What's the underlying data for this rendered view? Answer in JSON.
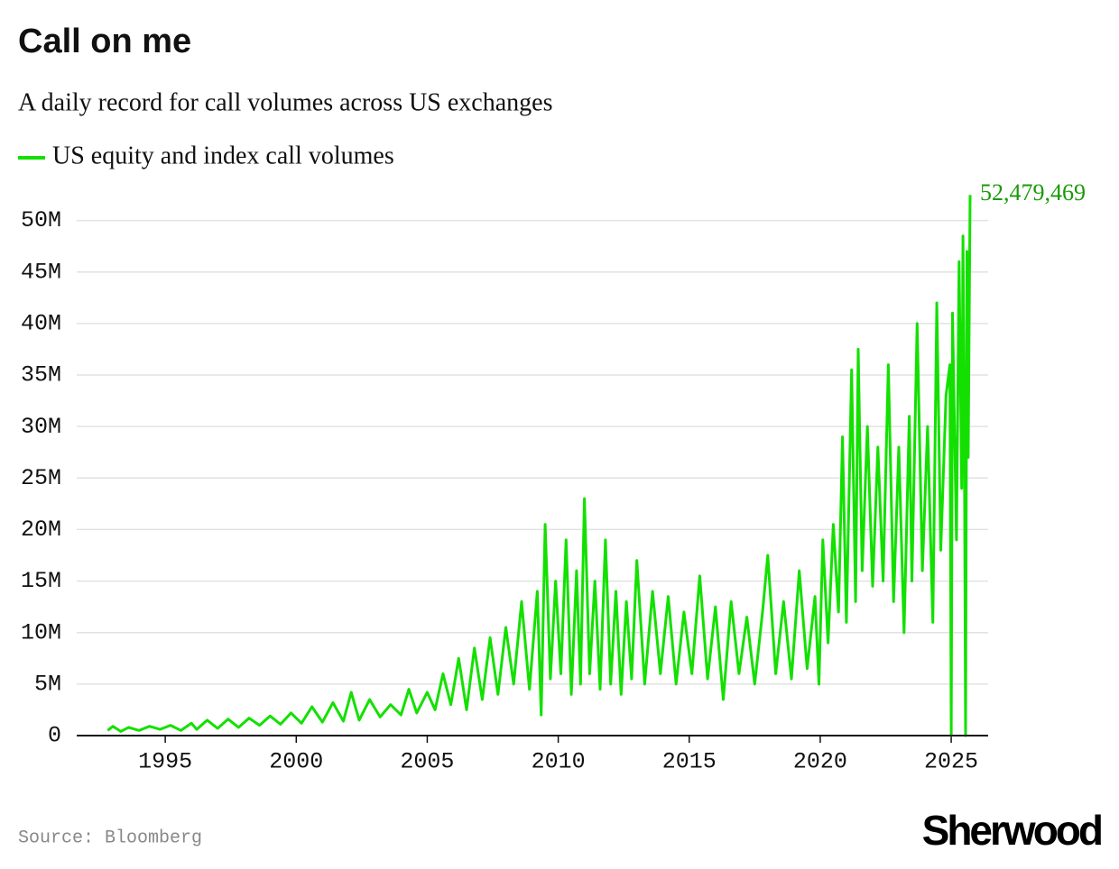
{
  "chart_data": {
    "type": "line",
    "title": "Call on me",
    "subtitle": "A daily record for call volumes across US exchanges",
    "source": "Source: Bloomberg",
    "brand": "Sherwood",
    "x": [
      1992.8,
      1993.0,
      1993.3,
      1993.6,
      1994.0,
      1994.4,
      1994.8,
      1995.2,
      1995.6,
      1996.0,
      1996.2,
      1996.6,
      1997.0,
      1997.4,
      1997.8,
      1998.2,
      1998.6,
      1999.0,
      1999.4,
      1999.8,
      2000.2,
      2000.6,
      2001.0,
      2001.4,
      2001.8,
      2002.1,
      2002.4,
      2002.8,
      2003.2,
      2003.6,
      2004.0,
      2004.3,
      2004.6,
      2005.0,
      2005.3,
      2005.6,
      2005.9,
      2006.2,
      2006.5,
      2006.8,
      2007.1,
      2007.4,
      2007.7,
      2008.0,
      2008.3,
      2008.6,
      2008.9,
      2009.2,
      2009.35,
      2009.5,
      2009.7,
      2009.9,
      2010.1,
      2010.3,
      2010.5,
      2010.7,
      2010.85,
      2011.0,
      2011.2,
      2011.4,
      2011.6,
      2011.8,
      2012.0,
      2012.2,
      2012.4,
      2012.6,
      2012.8,
      2013.0,
      2013.3,
      2013.6,
      2013.9,
      2014.2,
      2014.5,
      2014.8,
      2015.1,
      2015.4,
      2015.7,
      2016.0,
      2016.3,
      2016.6,
      2016.9,
      2017.2,
      2017.5,
      2017.8,
      2018.0,
      2018.3,
      2018.6,
      2018.9,
      2019.2,
      2019.5,
      2019.8,
      2019.95,
      2020.1,
      2020.3,
      2020.5,
      2020.7,
      2020.85,
      2021.0,
      2021.2,
      2021.35,
      2021.45,
      2021.6,
      2021.8,
      2022.0,
      2022.2,
      2022.4,
      2022.6,
      2022.8,
      2023.0,
      2023.2,
      2023.4,
      2023.5,
      2023.7,
      2023.9,
      2024.1,
      2024.3,
      2024.45,
      2024.6,
      2024.8,
      2024.95,
      2025.0,
      2025.05,
      2025.2,
      2025.3,
      2025.4,
      2025.45,
      2025.5,
      2025.55,
      2025.6,
      2025.65,
      2025.72
    ],
    "series": [
      {
        "name": "US equity and index call volumes",
        "color": "#13e000",
        "values": [
          500000,
          900000,
          400000,
          800000,
          500000,
          900000,
          600000,
          1000000,
          500000,
          1200000,
          600000,
          1500000,
          700000,
          1600000,
          800000,
          1700000,
          1000000,
          1900000,
          1100000,
          2200000,
          1200000,
          2800000,
          1300000,
          3200000,
          1400000,
          4200000,
          1500000,
          3500000,
          1800000,
          3000000,
          2000000,
          4500000,
          2200000,
          4200000,
          2500000,
          6000000,
          3000000,
          7500000,
          2500000,
          8500000,
          3500000,
          9500000,
          4000000,
          10500000,
          5000000,
          13000000,
          4500000,
          14000000,
          2000000,
          20500000,
          5500000,
          15000000,
          6000000,
          19000000,
          4000000,
          16000000,
          5000000,
          23000000,
          6000000,
          15000000,
          4500000,
          19000000,
          5000000,
          14000000,
          4000000,
          13000000,
          5500000,
          17000000,
          5000000,
          14000000,
          6000000,
          13500000,
          5000000,
          12000000,
          6000000,
          15500000,
          5500000,
          12500000,
          3500000,
          13000000,
          6000000,
          11500000,
          5000000,
          12000000,
          17500000,
          6000000,
          13000000,
          5500000,
          16000000,
          6500000,
          13500000,
          5000000,
          19000000,
          9000000,
          20500000,
          12000000,
          29000000,
          11000000,
          35500000,
          13000000,
          37500000,
          16000000,
          30000000,
          14500000,
          28000000,
          15000000,
          36000000,
          13000000,
          28000000,
          10000000,
          31000000,
          15000000,
          40000000,
          16000000,
          30000000,
          11000000,
          42000000,
          18000000,
          33000000,
          36000000,
          0,
          41000000,
          19000000,
          46000000,
          24000000,
          48500000,
          30000000,
          0,
          47000000,
          27000000,
          52479469
        ]
      }
    ],
    "annotation": {
      "x": 2025.72,
      "value": 52479469,
      "label": "52,479,469",
      "color": "#1a9a0a"
    },
    "xlim": [
      1991.62,
      2026.41
    ],
    "xticks": [
      1995,
      2000,
      2005,
      2010,
      2015,
      2020,
      2025
    ],
    "ylim": [
      0,
      52500000
    ],
    "yticks": [
      {
        "value": 0,
        "label": "0"
      },
      {
        "value": 5000000,
        "label": "5M"
      },
      {
        "value": 10000000,
        "label": "10M"
      },
      {
        "value": 15000000,
        "label": "15M"
      },
      {
        "value": 20000000,
        "label": "20M"
      },
      {
        "value": 25000000,
        "label": "25M"
      },
      {
        "value": 30000000,
        "label": "30M"
      },
      {
        "value": 35000000,
        "label": "35M"
      },
      {
        "value": 40000000,
        "label": "40M"
      },
      {
        "value": 45000000,
        "label": "45M"
      },
      {
        "value": 50000000,
        "label": "50M"
      }
    ],
    "grid": true
  }
}
